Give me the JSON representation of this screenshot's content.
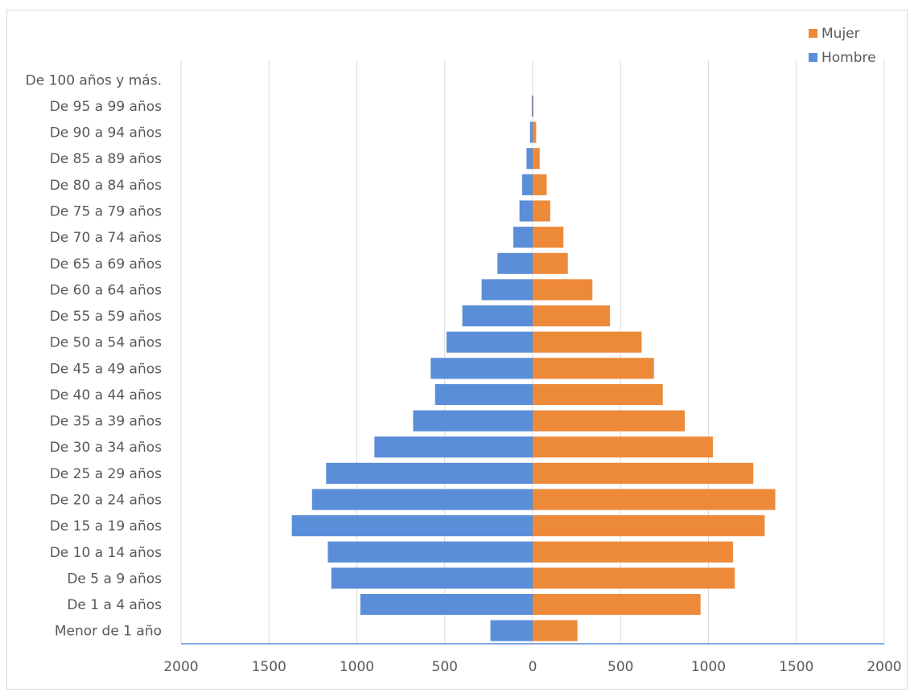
{
  "chart_data": {
    "type": "bar",
    "orientation": "horizontal",
    "title": "",
    "xlabel": "",
    "ylabel": "",
    "categories": [
      "De 100 años y más.",
      "De 95 a 99 años",
      "De 90 a 94 años",
      "De 85 a 89 años",
      "De 80 a 84 años",
      "De 75 a 79 años",
      "De 70 a 74 años",
      "De 65 a 69 años",
      "De 60 a 64 años",
      "De 55 a 59 años",
      "De 50 a 54 años",
      "De 45 a 49 años",
      "De 40 a 44 años",
      "De 35 a 39 años",
      "De 30 a 34 años",
      "De 25 a 29 años",
      "De 20 a 24 años",
      "De 15 a 19 años",
      "De 10 a 14 años",
      "De 5 a 9 años",
      "De 1 a 4 años",
      "Menor de 1 año"
    ],
    "series": [
      {
        "name": "Mujer",
        "color": "#ED8A3A",
        "side": "right",
        "values": [
          0,
          3,
          20,
          40,
          80,
          100,
          175,
          200,
          340,
          440,
          620,
          690,
          740,
          865,
          1025,
          1255,
          1380,
          1320,
          1140,
          1150,
          955,
          255
        ]
      },
      {
        "name": "Hombre",
        "color": "#5B8ED8",
        "side": "left",
        "values": [
          0,
          5,
          15,
          35,
          60,
          75,
          110,
          200,
          290,
          400,
          490,
          580,
          555,
          680,
          900,
          1175,
          1255,
          1370,
          1165,
          1145,
          980,
          240
        ]
      }
    ],
    "xticks": [
      "2000",
      "1500",
      "1000",
      "500",
      "0",
      "500",
      "1000",
      "1500",
      "2000"
    ],
    "xlim": [
      -2000,
      2000
    ],
    "grid": "vertical",
    "legend_position": "top-right"
  }
}
